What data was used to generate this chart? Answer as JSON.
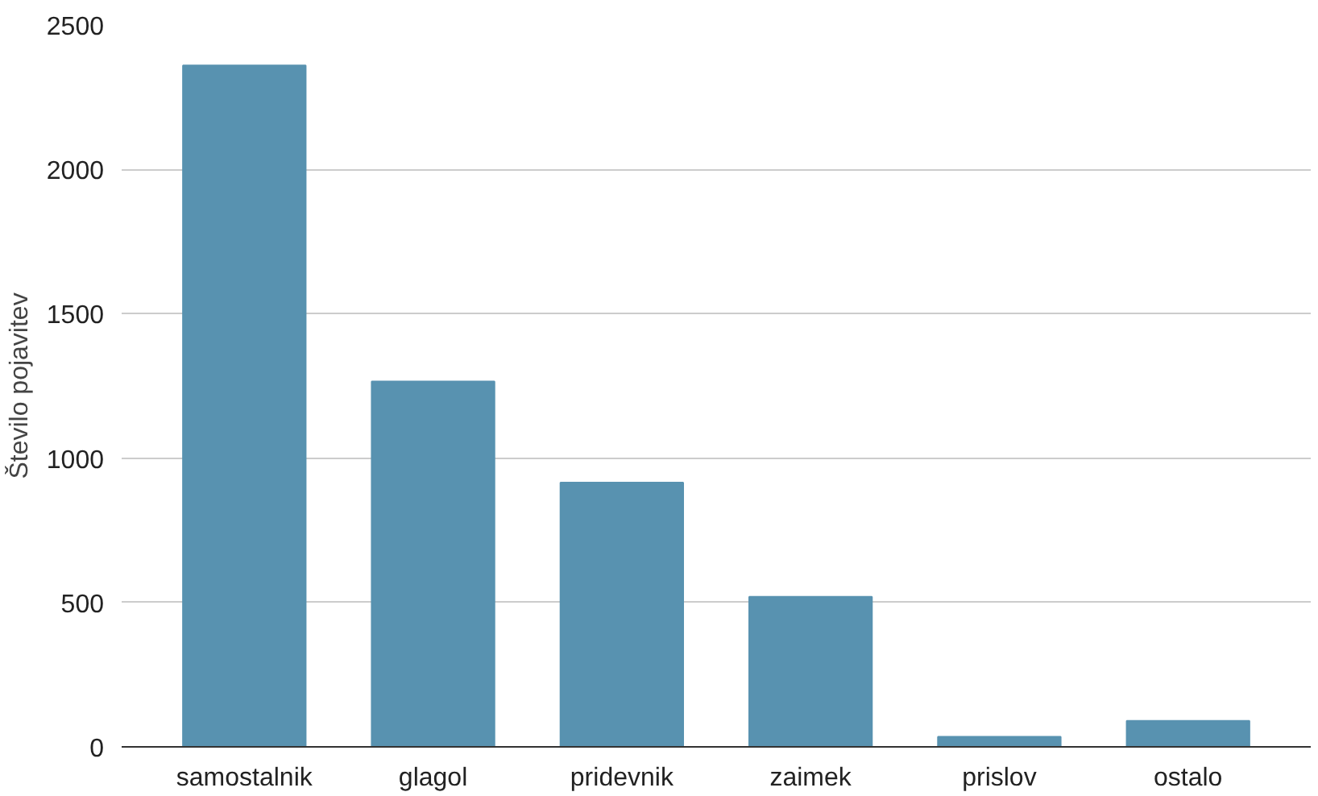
{
  "chart_data": {
    "type": "bar",
    "ylabel": "Število pojavitev",
    "categories": [
      "samostalnik",
      "glagol",
      "pridevnik",
      "zaimek",
      "prislov",
      "ostalo"
    ],
    "values": [
      2360,
      1265,
      915,
      520,
      35,
      90
    ],
    "color": "#5892b0",
    "ylim": [
      0,
      2500
    ],
    "yticks": [
      0,
      500,
      1000,
      1500,
      2000,
      2500
    ],
    "grid": "y"
  }
}
